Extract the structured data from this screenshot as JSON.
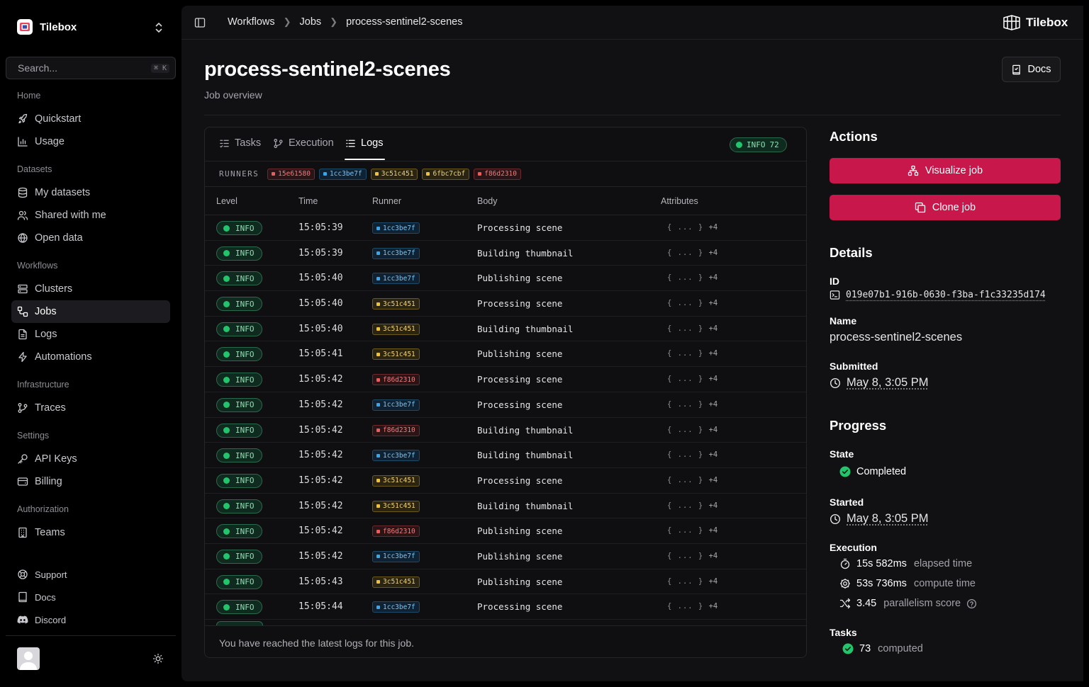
{
  "app": {
    "name": "Tilebox"
  },
  "sidebar": {
    "search_placeholder": "Search...",
    "search_shortcut": "⌘ K",
    "groups": [
      {
        "label": "Home",
        "items": [
          "Quickstart",
          "Usage"
        ]
      },
      {
        "label": "Datasets",
        "items": [
          "My datasets",
          "Shared with me",
          "Open data"
        ]
      },
      {
        "label": "Workflows",
        "items": [
          "Clusters",
          "Jobs",
          "Logs",
          "Automations"
        ]
      },
      {
        "label": "Infrastructure",
        "items": [
          "Traces"
        ]
      },
      {
        "label": "Settings",
        "items": [
          "API Keys",
          "Billing"
        ]
      },
      {
        "label": "Authorization",
        "items": [
          "Teams"
        ]
      }
    ],
    "footer_links": [
      "Support",
      "Docs",
      "Discord"
    ],
    "active_item": "Jobs"
  },
  "breadcrumb": [
    "Workflows",
    "Jobs",
    "process-sentinel2-scenes"
  ],
  "topbar_logo": "Tilebox",
  "page": {
    "title": "process-sentinel2-scenes",
    "subtitle": "Job overview",
    "docs_label": "Docs"
  },
  "tabs": [
    {
      "label": "Tasks",
      "icon": "tasks-icon"
    },
    {
      "label": "Execution",
      "icon": "git-branch-icon"
    },
    {
      "label": "Logs",
      "icon": "list-icon",
      "active": true
    }
  ],
  "log_count_badge": {
    "level": "INFO",
    "count": "72"
  },
  "runners": {
    "label": "RUNNERS",
    "items": [
      {
        "id": "15e61580",
        "color": "#ef5a5a"
      },
      {
        "id": "1cc3be7f",
        "color": "#3aa6ea"
      },
      {
        "id": "3c51c451",
        "color": "#eec23a"
      },
      {
        "id": "6fbc7cbf",
        "color": "#eec23a"
      },
      {
        "id": "f86d2310",
        "color": "#ef5a5a"
      }
    ]
  },
  "table": {
    "columns": [
      "Level",
      "Time",
      "Runner",
      "Body",
      "Attributes"
    ],
    "rows": [
      {
        "level": "INFO",
        "time": "15:05:39",
        "runner": "1cc3be7f",
        "body": "Processing scene",
        "attr": "{ ... }",
        "attr_more": "+4"
      },
      {
        "level": "INFO",
        "time": "15:05:39",
        "runner": "1cc3be7f",
        "body": "Building thumbnail",
        "attr": "{ ... }",
        "attr_more": "+4"
      },
      {
        "level": "INFO",
        "time": "15:05:40",
        "runner": "1cc3be7f",
        "body": "Publishing scene",
        "attr": "{ ... }",
        "attr_more": "+4"
      },
      {
        "level": "INFO",
        "time": "15:05:40",
        "runner": "3c51c451",
        "body": "Processing scene",
        "attr": "{ ... }",
        "attr_more": "+4"
      },
      {
        "level": "INFO",
        "time": "15:05:40",
        "runner": "3c51c451",
        "body": "Building thumbnail",
        "attr": "{ ... }",
        "attr_more": "+4"
      },
      {
        "level": "INFO",
        "time": "15:05:41",
        "runner": "3c51c451",
        "body": "Publishing scene",
        "attr": "{ ... }",
        "attr_more": "+4"
      },
      {
        "level": "INFO",
        "time": "15:05:42",
        "runner": "f86d2310",
        "body": "Processing scene",
        "attr": "{ ... }",
        "attr_more": "+4"
      },
      {
        "level": "INFO",
        "time": "15:05:42",
        "runner": "1cc3be7f",
        "body": "Processing scene",
        "attr": "{ ... }",
        "attr_more": "+4"
      },
      {
        "level": "INFO",
        "time": "15:05:42",
        "runner": "f86d2310",
        "body": "Building thumbnail",
        "attr": "{ ... }",
        "attr_more": "+4"
      },
      {
        "level": "INFO",
        "time": "15:05:42",
        "runner": "1cc3be7f",
        "body": "Building thumbnail",
        "attr": "{ ... }",
        "attr_more": "+4"
      },
      {
        "level": "INFO",
        "time": "15:05:42",
        "runner": "3c51c451",
        "body": "Processing scene",
        "attr": "{ ... }",
        "attr_more": "+4"
      },
      {
        "level": "INFO",
        "time": "15:05:42",
        "runner": "3c51c451",
        "body": "Building thumbnail",
        "attr": "{ ... }",
        "attr_more": "+4"
      },
      {
        "level": "INFO",
        "time": "15:05:42",
        "runner": "f86d2310",
        "body": "Publishing scene",
        "attr": "{ ... }",
        "attr_more": "+4"
      },
      {
        "level": "INFO",
        "time": "15:05:42",
        "runner": "1cc3be7f",
        "body": "Publishing scene",
        "attr": "{ ... }",
        "attr_more": "+4"
      },
      {
        "level": "INFO",
        "time": "15:05:43",
        "runner": "3c51c451",
        "body": "Publishing scene",
        "attr": "{ ... }",
        "attr_more": "+4"
      },
      {
        "level": "INFO",
        "time": "15:05:44",
        "runner": "1cc3be7f",
        "body": "Processing scene",
        "attr": "{ ... }",
        "attr_more": "+4"
      }
    ],
    "footer_note": "You have reached the latest logs for this job."
  },
  "actions": {
    "title": "Actions",
    "visualize_label": "Visualize job",
    "clone_label": "Clone job",
    "accent": "#c8174a"
  },
  "details": {
    "title": "Details",
    "id_label": "ID",
    "id_value": "019e07b1-916b-0630-f3ba-f1c33235d174",
    "name_label": "Name",
    "name_value": "process-sentinel2-scenes",
    "submitted_label": "Submitted",
    "submitted_value": "May 8, 3:05 PM"
  },
  "progress": {
    "title": "Progress",
    "state_label": "State",
    "state_value": "Completed",
    "started_label": "Started",
    "started_value": "May 8, 3:05 PM",
    "execution_label": "Execution",
    "elapsed_value": "15s 582ms",
    "elapsed_label": "elapsed time",
    "compute_value": "53s 736ms",
    "compute_label": "compute time",
    "parallelism_value": "3.45",
    "parallelism_label": "parallelism score",
    "tasks_label": "Tasks",
    "tasks_value": "73",
    "tasks_suffix": "computed"
  }
}
